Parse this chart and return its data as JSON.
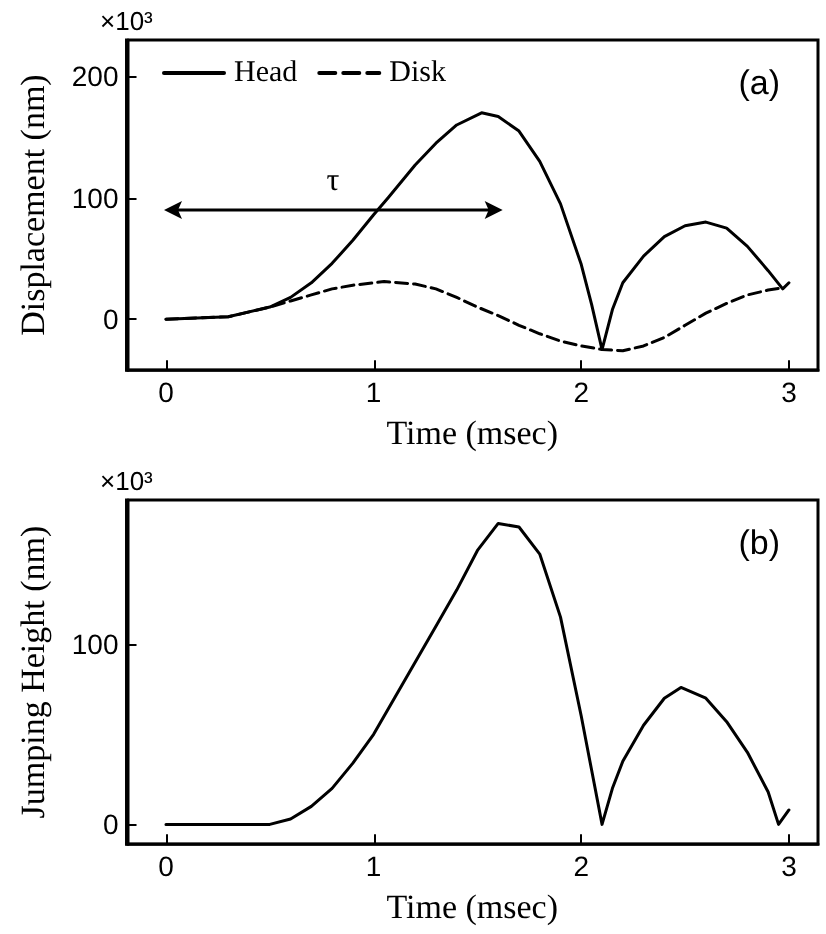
{
  "chart_data": [
    {
      "type": "line",
      "title": "(a)",
      "xlabel": "Time (msec)",
      "ylabel": "Displacement (nm)",
      "annotations": [
        "×10³",
        "τ"
      ],
      "xlim": [
        -0.19,
        3.14
      ],
      "xticks": [
        0,
        1,
        2,
        3
      ],
      "ylim": [
        -42,
        230
      ],
      "yticks": [
        0,
        100,
        200
      ],
      "legend": "top left",
      "marker": "none",
      "series": [
        {
          "name": "Head",
          "color": "#000000",
          "line_style": "solid",
          "x": [
            0,
            0.3,
            0.5,
            0.6,
            0.7,
            0.8,
            0.9,
            1.0,
            1.07,
            1.2,
            1.3,
            1.4,
            1.52,
            1.6,
            1.7,
            1.8,
            1.9,
            2.0,
            2.05,
            2.1,
            2.15,
            2.2,
            2.3,
            2.4,
            2.5,
            2.6,
            2.7,
            2.8,
            2.9,
            2.97,
            3.0
          ],
          "values": [
            0,
            2,
            10,
            18,
            30,
            46,
            65,
            86,
            100,
            127,
            145,
            160,
            170,
            167,
            155,
            130,
            95,
            45,
            12,
            -25,
            8,
            30,
            52,
            68,
            77,
            80,
            75,
            60,
            40,
            25,
            30
          ]
        },
        {
          "name": "Disk",
          "color": "#000000",
          "line_style": "dashed",
          "x": [
            0,
            0.3,
            0.5,
            0.6,
            0.7,
            0.8,
            0.9,
            1.05,
            1.2,
            1.3,
            1.4,
            1.5,
            1.6,
            1.7,
            1.8,
            1.9,
            2.0,
            2.1,
            2.2,
            2.3,
            2.4,
            2.5,
            2.6,
            2.7,
            2.8,
            2.9,
            2.97
          ],
          "values": [
            0,
            2,
            10,
            15,
            20,
            25,
            28,
            31,
            29,
            25,
            18,
            10,
            3,
            -5,
            -12,
            -18,
            -22,
            -25,
            -26,
            -22,
            -15,
            -5,
            5,
            13,
            20,
            24,
            26
          ]
        }
      ]
    },
    {
      "type": "line",
      "title": "(b)",
      "xlabel": "Time (msec)",
      "ylabel": "Jumping Height (nm)",
      "annotations": [
        "×10³"
      ],
      "xlim": [
        -0.19,
        3.14
      ],
      "xticks": [
        0,
        1,
        2,
        3
      ],
      "ylim": [
        -11,
        180
      ],
      "yticks": [
        0,
        100
      ],
      "marker": "none",
      "series": [
        {
          "color": "#000000",
          "line_style": "solid",
          "x": [
            0,
            0.5,
            0.6,
            0.7,
            0.8,
            0.9,
            1.0,
            1.1,
            1.2,
            1.3,
            1.4,
            1.5,
            1.6,
            1.7,
            1.8,
            1.9,
            2.0,
            2.05,
            2.1,
            2.15,
            2.2,
            2.3,
            2.4,
            2.48,
            2.6,
            2.7,
            2.8,
            2.9,
            2.95,
            3.0
          ],
          "values": [
            0,
            0,
            3,
            10,
            20,
            34,
            50,
            70,
            90,
            110,
            130,
            152,
            167,
            165,
            150,
            115,
            60,
            30,
            0,
            20,
            35,
            55,
            70,
            76,
            70,
            57,
            40,
            18,
            0,
            8
          ]
        }
      ]
    }
  ]
}
